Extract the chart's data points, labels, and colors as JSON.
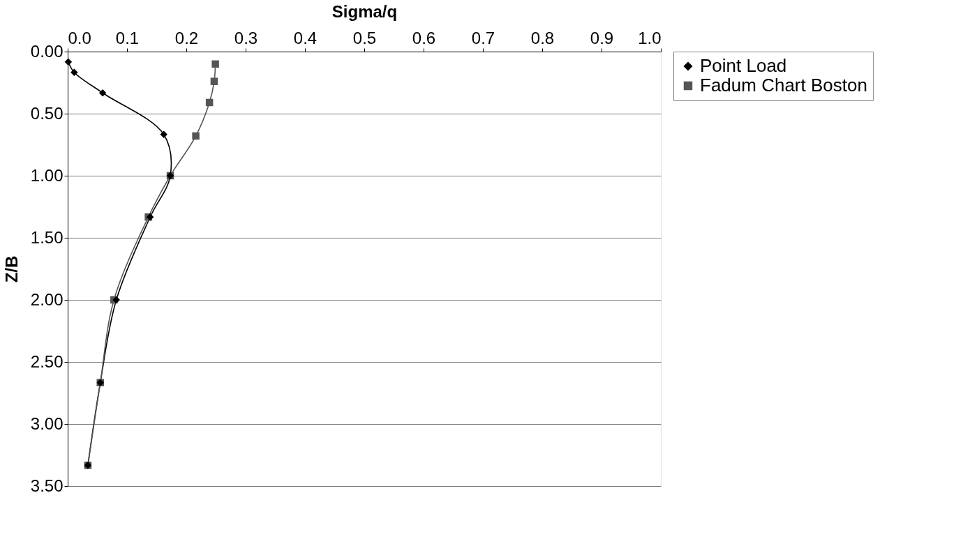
{
  "chart_data": {
    "type": "line",
    "xlabel": "Sigma/q",
    "ylabel": "Z/B",
    "xlim": [
      0,
      1.0
    ],
    "xticks": [
      {
        "value": 0,
        "label": "0.0"
      },
      0.1,
      0.2,
      0.3,
      0.4,
      0.5,
      0.6,
      0.7,
      0.8,
      0.9,
      {
        "value": 1.0,
        "label": "1.0"
      }
    ],
    "ylim": [
      3.5,
      0
    ],
    "yticks": [
      {
        "value": 0,
        "label": "0.00"
      },
      {
        "value": 0.5,
        "label": "0.50"
      },
      {
        "value": 1.0,
        "label": "1.00"
      },
      {
        "value": 1.5,
        "label": "1.50"
      },
      {
        "value": 2.0,
        "label": "2.00"
      },
      {
        "value": 2.5,
        "label": "2.50"
      },
      {
        "value": 3.0,
        "label": "3.00"
      },
      {
        "value": 3.5,
        "label": "3.50"
      }
    ],
    "grid": "y",
    "legend": "right",
    "series": [
      {
        "name": "Point Load",
        "color": "#000000",
        "marker": "diamond",
        "x": [
          0.001,
          0.011,
          0.059,
          0.162,
          0.173,
          0.139,
          0.082,
          0.055,
          0.034
        ],
        "values": [
          0.083,
          0.167,
          0.333,
          0.667,
          1.0,
          1.333,
          2.0,
          2.667,
          3.333
        ]
      },
      {
        "name": "Fadum Chart Boston",
        "color": "#555555",
        "marker": "square",
        "x": [
          0.249,
          0.247,
          0.239,
          0.216,
          0.173,
          0.136,
          0.078,
          0.055,
          0.034
        ],
        "values": [
          0.1,
          0.24,
          0.41,
          0.68,
          1.0,
          1.333,
          2.0,
          2.667,
          3.333
        ]
      }
    ]
  }
}
